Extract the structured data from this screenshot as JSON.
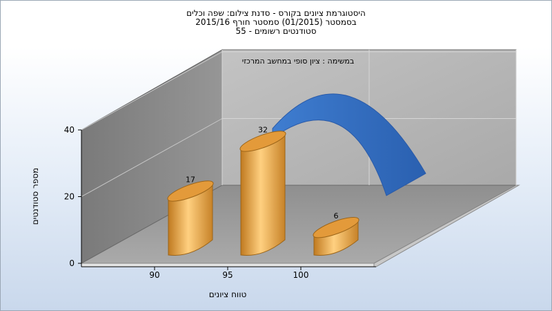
{
  "titles": [
    "היסטוגרמת ציונים בקורס - סדנת צילום: שפה וכלים",
    "בסמסטר (01/2015) סמסטר חורף 2015/16",
    "סטודנטים רשומים - 55"
  ],
  "chart_data": {
    "type": "bar",
    "subtitle": "במשימה : ציון סופי במחשב המרכזי",
    "categories": [
      "90",
      "95",
      "100"
    ],
    "values": [
      17,
      32,
      6
    ],
    "ylim": [
      0,
      40
    ],
    "yticks": [
      "0",
      "20",
      "40"
    ],
    "xlabel": "טווח ציונים",
    "ylabel": "מספר סטודנטים",
    "bar_color": "#e8a040",
    "curve_color": "#2f6abf",
    "grid": true
  }
}
